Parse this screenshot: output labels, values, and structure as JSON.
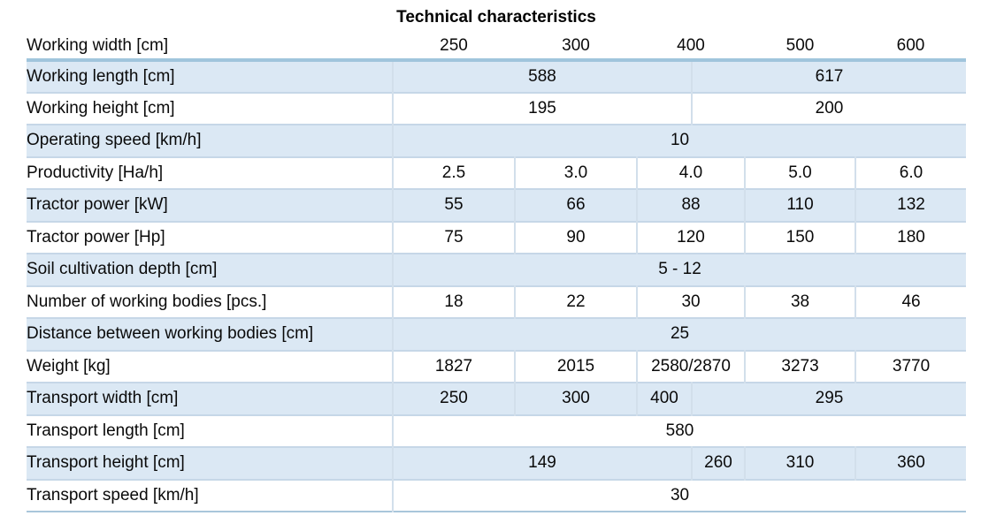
{
  "title": "Technical characteristics",
  "colors": {
    "shaded_row_bg": "#dbe8f4",
    "header_rule": "#a0c5dc",
    "row_divider": "#c6d7e7",
    "cell_divider": "#d2dfeb",
    "bottom_rule": "#a9c6db",
    "text": "#0a0a0a"
  },
  "table": {
    "header": {
      "label": "Working width [cm]",
      "cells": [
        {
          "text": "250",
          "span": 1
        },
        {
          "text": "300",
          "span": 1
        },
        {
          "text": "400",
          "span": 2
        },
        {
          "text": "500",
          "span": 1
        },
        {
          "text": "600",
          "span": 1
        }
      ]
    },
    "rows": [
      {
        "label": "Working length [cm]",
        "shaded": true,
        "cells": [
          {
            "text": "588",
            "span": 3
          },
          {
            "text": "617",
            "span": 3
          }
        ]
      },
      {
        "label": "Working height [cm]",
        "shaded": false,
        "cells": [
          {
            "text": "195",
            "span": 3
          },
          {
            "text": "200",
            "span": 3
          }
        ]
      },
      {
        "label": "Operating speed [km/h]",
        "shaded": true,
        "cells": [
          {
            "text": "10",
            "span": 6
          }
        ]
      },
      {
        "label": "Productivity [Ha/h]",
        "shaded": false,
        "cells": [
          {
            "text": "2.5",
            "span": 1
          },
          {
            "text": "3.0",
            "span": 1
          },
          {
            "text": "4.0",
            "span": 2
          },
          {
            "text": "5.0",
            "span": 1
          },
          {
            "text": "6.0",
            "span": 1
          }
        ]
      },
      {
        "label": "Tractor power [kW]",
        "shaded": true,
        "cells": [
          {
            "text": "55",
            "span": 1
          },
          {
            "text": "66",
            "span": 1
          },
          {
            "text": "88",
            "span": 2
          },
          {
            "text": "110",
            "span": 1
          },
          {
            "text": "132",
            "span": 1
          }
        ]
      },
      {
        "label": "Tractor power [Hp]",
        "shaded": false,
        "cells": [
          {
            "text": "75",
            "span": 1
          },
          {
            "text": "90",
            "span": 1
          },
          {
            "text": "120",
            "span": 2
          },
          {
            "text": "150",
            "span": 1
          },
          {
            "text": "180",
            "span": 1
          }
        ]
      },
      {
        "label": "Soil cultivation depth [cm]",
        "shaded": true,
        "cells": [
          {
            "text": "5 - 12",
            "span": 6
          }
        ]
      },
      {
        "label": "Number of working bodies [pcs.]",
        "shaded": false,
        "cells": [
          {
            "text": "18",
            "span": 1
          },
          {
            "text": "22",
            "span": 1
          },
          {
            "text": "30",
            "span": 2
          },
          {
            "text": "38",
            "span": 1
          },
          {
            "text": "46",
            "span": 1
          }
        ]
      },
      {
        "label": "Distance between working bodies [cm]",
        "shaded": true,
        "cells": [
          {
            "text": "25",
            "span": 6
          }
        ]
      },
      {
        "label": "Weight [kg]",
        "shaded": false,
        "cells": [
          {
            "text": "1827",
            "span": 1
          },
          {
            "text": "2015",
            "span": 1
          },
          {
            "text": "2580/2870",
            "span": 2
          },
          {
            "text": "3273",
            "span": 1
          },
          {
            "text": "3770",
            "span": 1
          }
        ]
      },
      {
        "label": "Transport width [cm]",
        "shaded": true,
        "cells": [
          {
            "text": "250",
            "span": 1
          },
          {
            "text": "300",
            "span": 1
          },
          {
            "text": "400",
            "span": 1
          },
          {
            "text": "295",
            "span": 3
          }
        ]
      },
      {
        "label": "Transport length [cm]",
        "shaded": false,
        "cells": [
          {
            "text": "580",
            "span": 6
          }
        ]
      },
      {
        "label": "Transport height [cm]",
        "shaded": true,
        "cells": [
          {
            "text": "149",
            "span": 3
          },
          {
            "text": "260",
            "span": 1
          },
          {
            "text": "310",
            "span": 1
          },
          {
            "text": "360",
            "span": 1
          }
        ]
      },
      {
        "label": "Transport speed [km/h]",
        "shaded": false,
        "cells": [
          {
            "text": "30",
            "span": 6
          }
        ]
      }
    ]
  }
}
